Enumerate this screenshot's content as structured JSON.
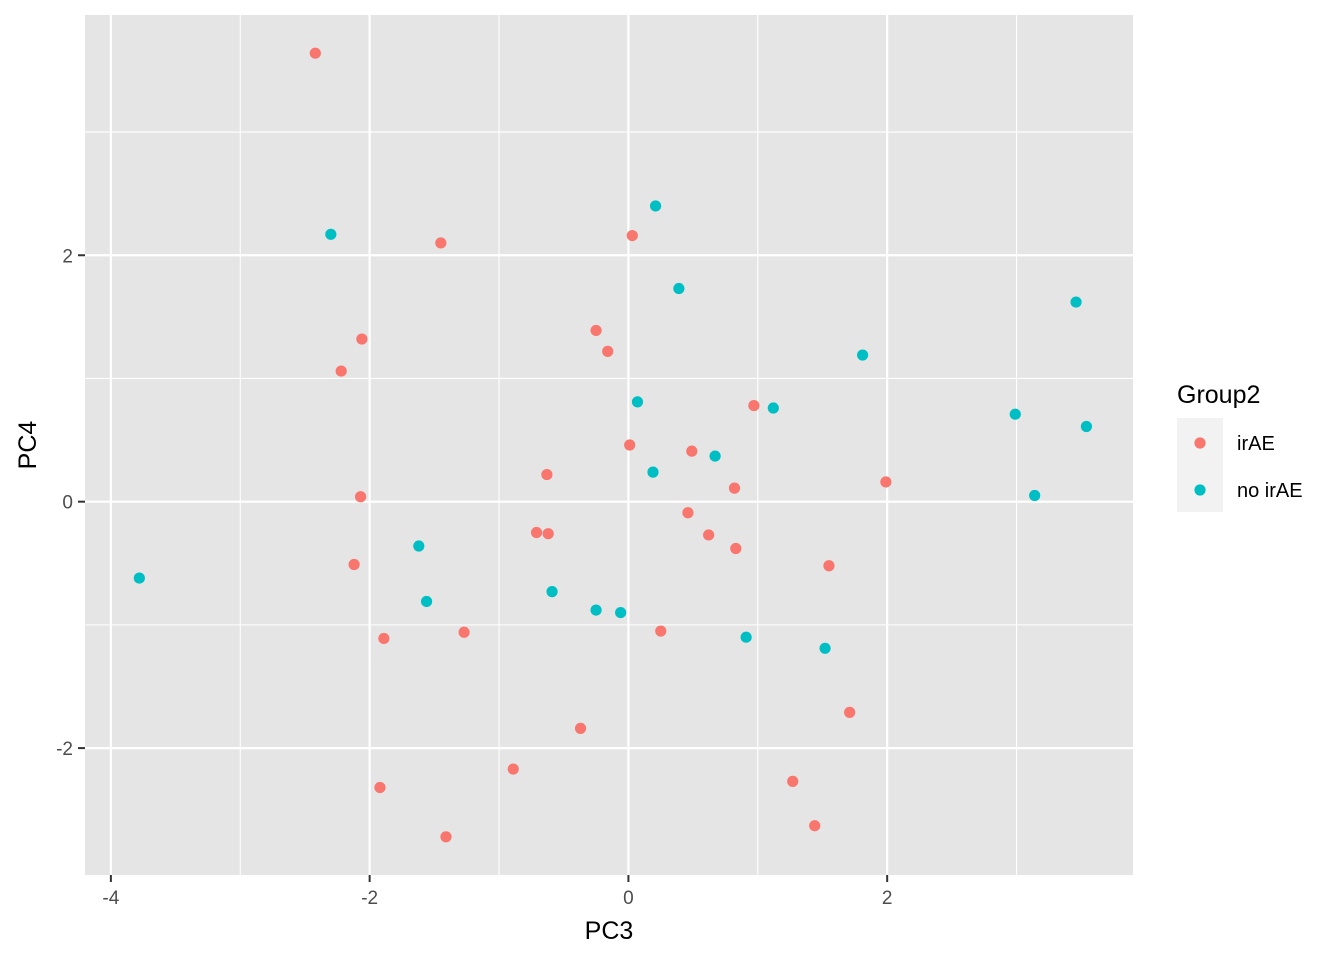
{
  "chart_data": {
    "type": "scatter",
    "xlabel": "PC3",
    "ylabel": "PC4",
    "xlim": [
      -4.2,
      3.9
    ],
    "ylim": [
      -3.03,
      3.95
    ],
    "x_ticks": [
      -4,
      -2,
      0,
      2
    ],
    "x_tick_labels": [
      "-4",
      "-2",
      "0",
      "2"
    ],
    "x_minor_ticks": [
      -3,
      -1,
      1,
      3
    ],
    "y_ticks": [
      -2,
      0,
      2
    ],
    "y_tick_labels": [
      "-2",
      "0",
      "2"
    ],
    "y_minor_ticks": [
      -1,
      1,
      3
    ],
    "grid": true,
    "legend": {
      "title": "Group2",
      "position": "right"
    },
    "series": [
      {
        "name": "irAE",
        "color": "#F8766D",
        "points": [
          [
            -2.42,
            3.64
          ],
          [
            -1.45,
            2.1
          ],
          [
            0.03,
            2.16
          ],
          [
            -2.06,
            1.32
          ],
          [
            -0.25,
            1.39
          ],
          [
            -0.16,
            1.22
          ],
          [
            -2.22,
            1.06
          ],
          [
            0.97,
            0.78
          ],
          [
            0.01,
            0.46
          ],
          [
            0.49,
            0.41
          ],
          [
            -0.63,
            0.22
          ],
          [
            1.99,
            0.16
          ],
          [
            0.82,
            0.11
          ],
          [
            -2.07,
            0.04
          ],
          [
            0.46,
            -0.09
          ],
          [
            -0.71,
            -0.25
          ],
          [
            -0.62,
            -0.26
          ],
          [
            0.62,
            -0.27
          ],
          [
            0.83,
            -0.38
          ],
          [
            -2.12,
            -0.51
          ],
          [
            1.55,
            -0.52
          ],
          [
            -1.27,
            -1.06
          ],
          [
            0.25,
            -1.05
          ],
          [
            -1.89,
            -1.11
          ],
          [
            1.71,
            -1.71
          ],
          [
            -0.37,
            -1.84
          ],
          [
            -0.89,
            -2.17
          ],
          [
            1.27,
            -2.27
          ],
          [
            -1.92,
            -2.32
          ],
          [
            1.44,
            -2.63
          ],
          [
            -1.41,
            -2.72
          ]
        ]
      },
      {
        "name": "no irAE",
        "color": "#00BFC4",
        "points": [
          [
            0.21,
            2.4
          ],
          [
            -2.3,
            2.17
          ],
          [
            0.39,
            1.73
          ],
          [
            3.46,
            1.62
          ],
          [
            1.81,
            1.19
          ],
          [
            0.07,
            0.81
          ],
          [
            1.12,
            0.76
          ],
          [
            2.99,
            0.71
          ],
          [
            3.54,
            0.61
          ],
          [
            0.67,
            0.37
          ],
          [
            0.19,
            0.24
          ],
          [
            3.14,
            0.05
          ],
          [
            -1.62,
            -0.36
          ],
          [
            -3.78,
            -0.62
          ],
          [
            -0.59,
            -0.73
          ],
          [
            -1.56,
            -0.81
          ],
          [
            -0.25,
            -0.88
          ],
          [
            -0.06,
            -0.9
          ],
          [
            0.91,
            -1.1
          ],
          [
            1.52,
            -1.19
          ]
        ]
      }
    ]
  }
}
